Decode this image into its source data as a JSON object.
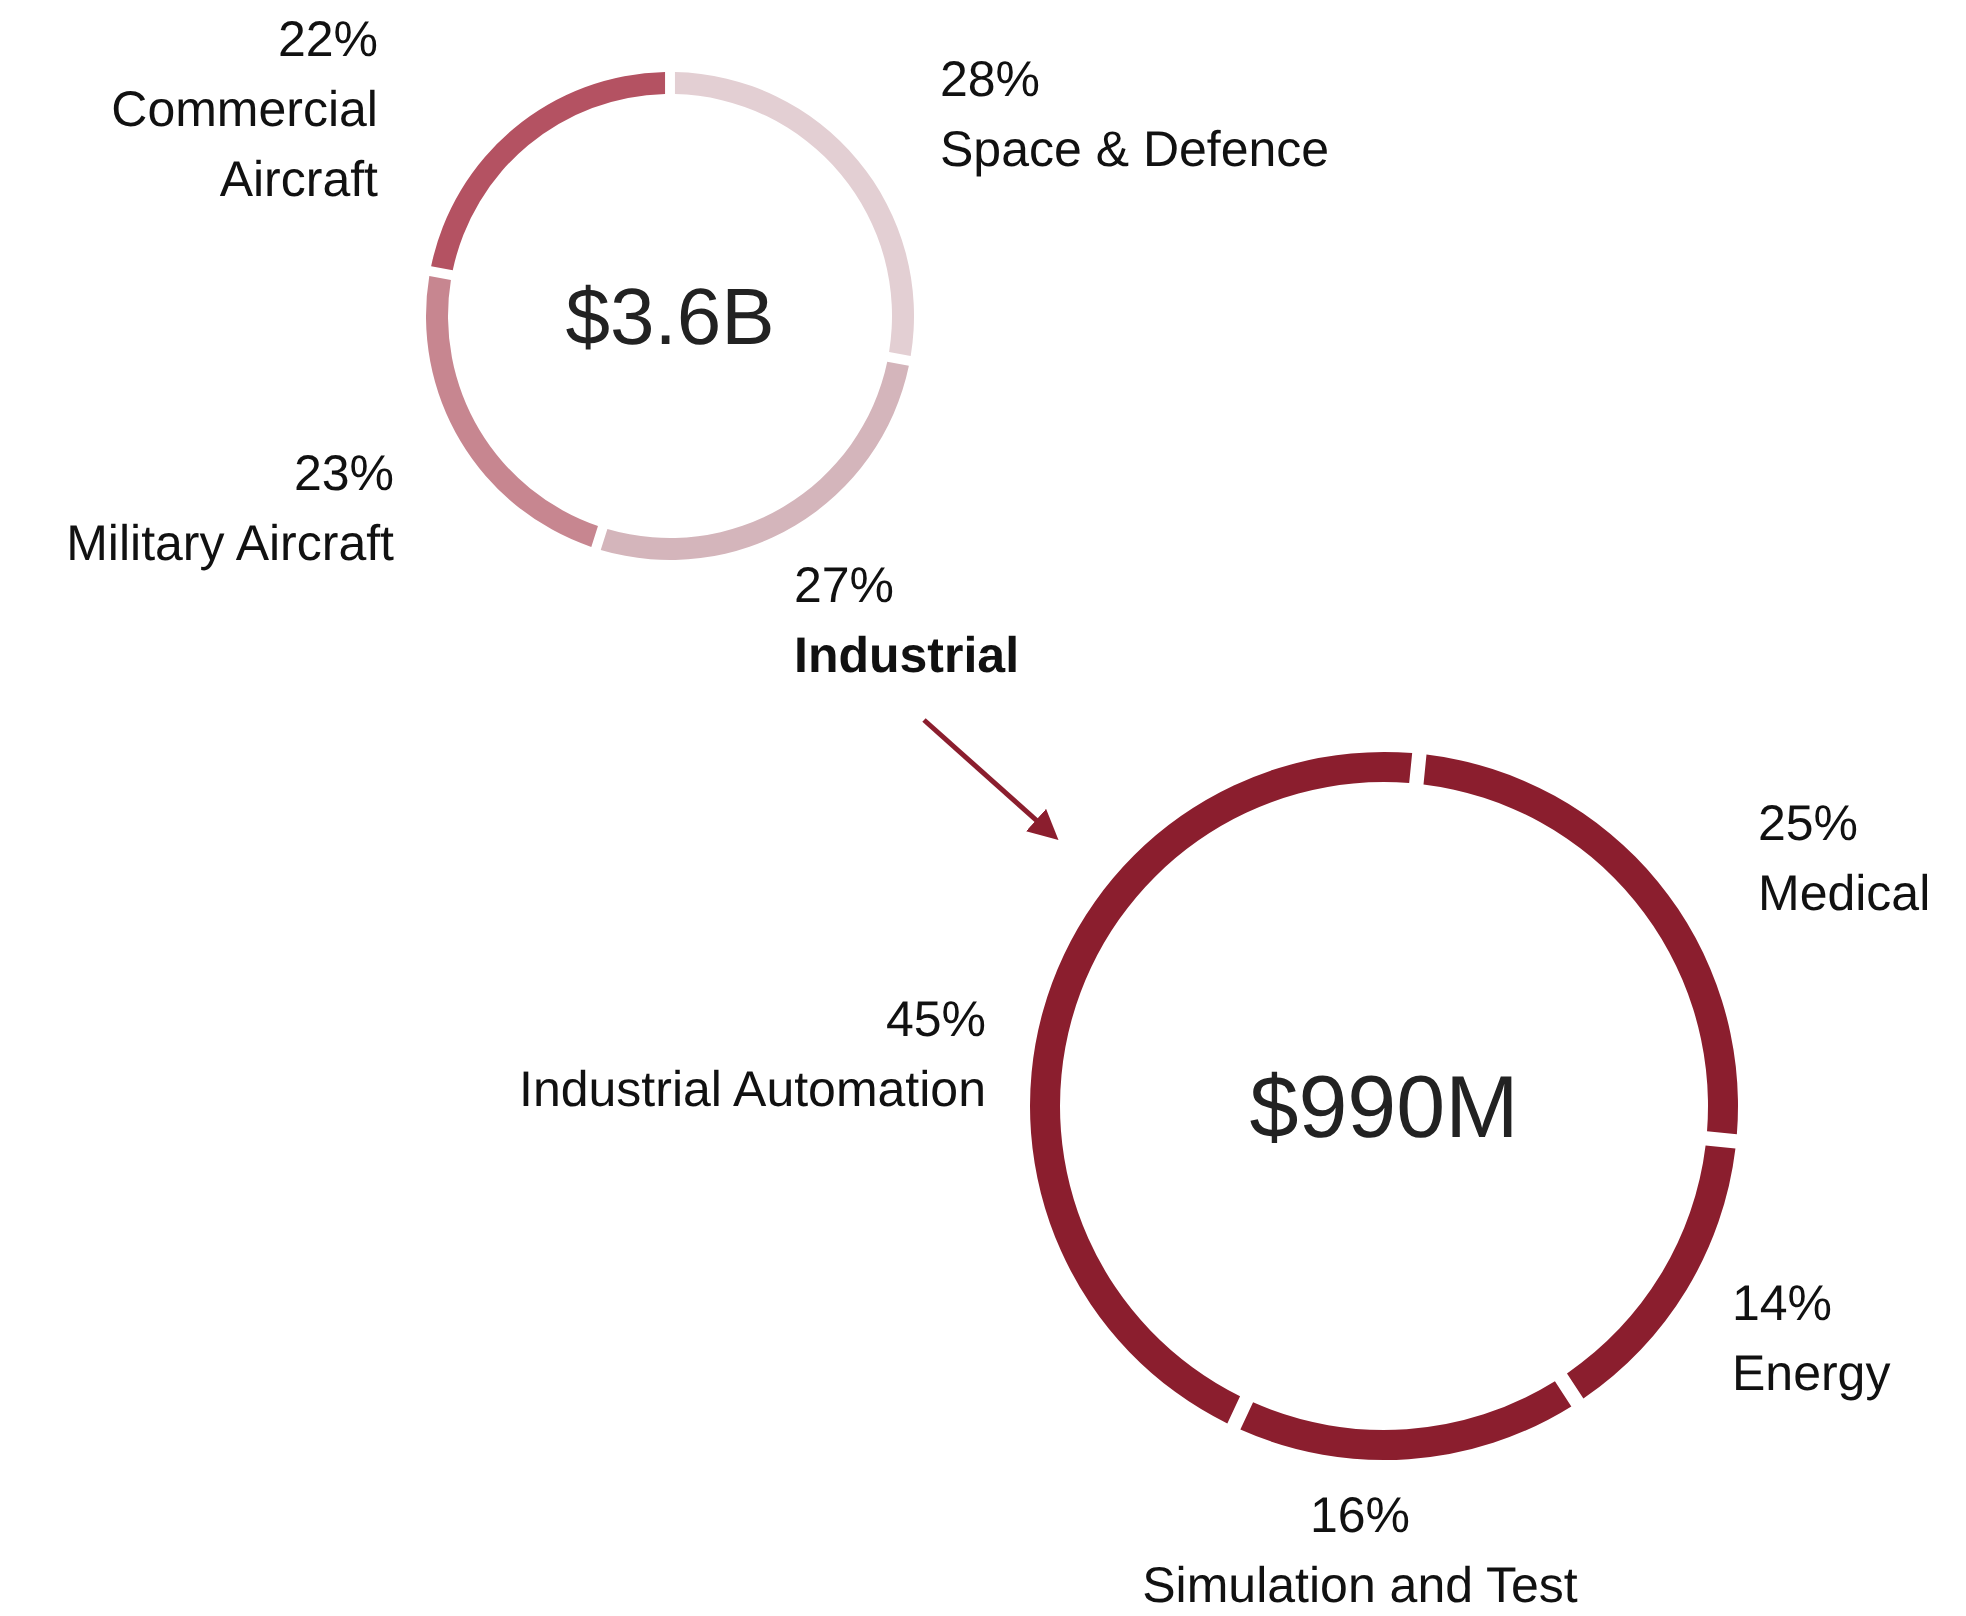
{
  "chart_data": [
    {
      "type": "donut",
      "title": "$3.6B",
      "categories": [
        "Space & Defence",
        "Industrial",
        "Military Aircraft",
        "Commercial Aircraft"
      ],
      "values": [
        28,
        27,
        23,
        22
      ],
      "value_labels": [
        "28%",
        "27%",
        "23%",
        "22%"
      ],
      "colors": [
        "#e3cfd3",
        "#d4b5bb",
        "#c78690",
        "#b45262"
      ]
    },
    {
      "type": "donut",
      "title": "$990M",
      "categories": [
        "Medical",
        "Energy",
        "Simulation and Test",
        "Industrial Automation"
      ],
      "values": [
        25,
        14,
        16,
        45
      ],
      "value_labels": [
        "25%",
        "14%",
        "16%",
        "45%"
      ],
      "colors": [
        "#8b1e2e",
        "#8b1e2e",
        "#8b1e2e",
        "#8b1e2e"
      ]
    }
  ]
}
